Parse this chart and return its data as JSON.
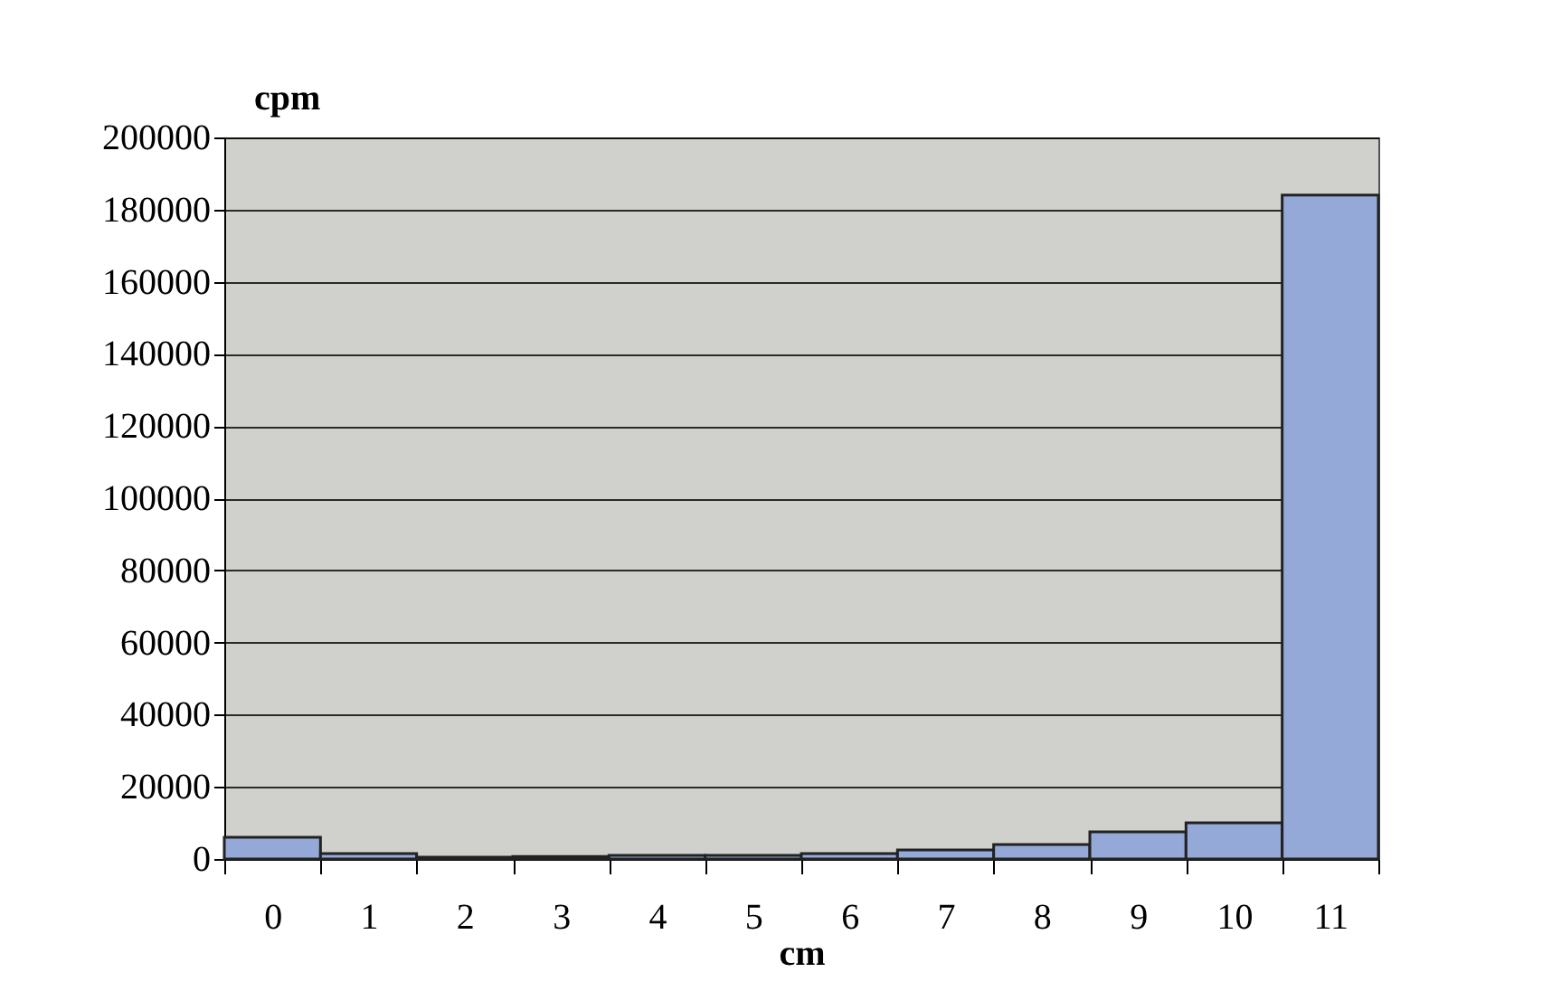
{
  "chart_data": {
    "type": "bar",
    "xlabel": "cm",
    "ylabel": "cpm",
    "categories": [
      "0",
      "1",
      "2",
      "3",
      "4",
      "5",
      "6",
      "7",
      "8",
      "9",
      "10",
      "11"
    ],
    "values": [
      6000,
      1500,
      500,
      700,
      1000,
      1000,
      1500,
      2500,
      4000,
      7500,
      10000,
      184000
    ],
    "color": "#94a9d8",
    "ylim": [
      0,
      200000
    ],
    "yticks": [
      0,
      20000,
      40000,
      60000,
      80000,
      100000,
      120000,
      140000,
      160000,
      180000,
      200000
    ],
    "grid": "y"
  }
}
